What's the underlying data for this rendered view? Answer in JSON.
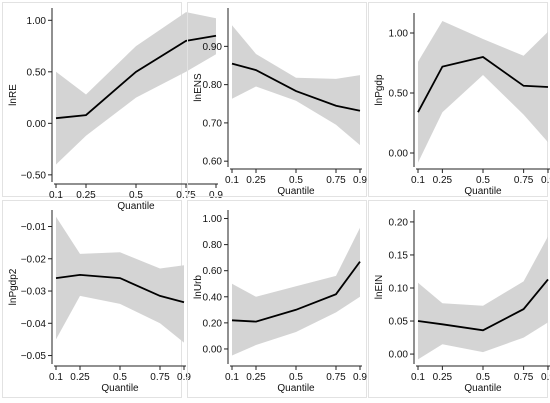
{
  "chart_data": [
    {
      "type": "line",
      "xlabel": "Quantile",
      "ylabel": "lnRE",
      "x": [
        0.1,
        0.25,
        0.5,
        0.75,
        0.9
      ],
      "xticks": [
        "0.1",
        "0.25",
        "0.5",
        "0.75",
        "0.9"
      ],
      "ylim": [
        -0.55,
        1.1
      ],
      "yticks": [
        -0.5,
        0.0,
        0.5,
        1.0
      ],
      "ytick_labels": [
        "−0.50",
        "0.00",
        "0.50",
        "1.00"
      ],
      "estimate": [
        0.05,
        0.08,
        0.5,
        0.8,
        0.85
      ],
      "ci_lower": [
        -0.4,
        -0.12,
        0.25,
        0.5,
        0.67
      ],
      "ci_upper": [
        0.5,
        0.28,
        0.75,
        1.08,
        1.02
      ]
    },
    {
      "type": "line",
      "xlabel": "Quantile",
      "ylabel": "lnENS",
      "x": [
        0.1,
        0.25,
        0.5,
        0.75,
        0.9
      ],
      "xticks": [
        "0.1",
        "0.25",
        "0.5",
        "0.75",
        "0.9"
      ],
      "ylim": [
        0.59,
        0.995
      ],
      "yticks": [
        0.6,
        0.7,
        0.8,
        0.9
      ],
      "ytick_labels": [
        "0.60",
        "0.70",
        "0.80",
        "0.90"
      ],
      "estimate": [
        0.855,
        0.838,
        0.783,
        0.745,
        0.732
      ],
      "ci_lower": [
        0.763,
        0.795,
        0.758,
        0.695,
        0.642
      ],
      "ci_upper": [
        0.955,
        0.88,
        0.818,
        0.815,
        0.825
      ]
    },
    {
      "type": "line",
      "xlabel": "Quantile",
      "ylabel": "lnPgdp",
      "x": [
        0.1,
        0.25,
        0.5,
        0.75,
        0.9
      ],
      "xticks": [
        "0.1",
        "0.25",
        "0.5",
        "0.75",
        "0.9"
      ],
      "ylim": [
        -0.1,
        1.15
      ],
      "yticks": [
        0.0,
        0.5,
        1.0
      ],
      "ytick_labels": [
        "0.00",
        "0.50",
        "1.00"
      ],
      "estimate": [
        0.34,
        0.72,
        0.8,
        0.56,
        0.55
      ],
      "ci_lower": [
        -0.08,
        0.34,
        0.65,
        0.32,
        0.09
      ],
      "ci_upper": [
        0.76,
        1.1,
        0.95,
        0.81,
        1.01
      ]
    },
    {
      "type": "line",
      "xlabel": "Quantile",
      "ylabel": "lnPgdp2",
      "x": [
        0.1,
        0.25,
        0.5,
        0.75,
        0.9
      ],
      "xticks": [
        "0.1",
        "0.25",
        "0.5",
        "0.75",
        "0.9"
      ],
      "ylim": [
        -0.052,
        -0.0055
      ],
      "yticks": [
        -0.05,
        -0.04,
        -0.03,
        -0.02,
        -0.01
      ],
      "ytick_labels": [
        "−0.05",
        "−0.04",
        "−0.03",
        "−0.02",
        "−0.01"
      ],
      "estimate": [
        -0.026,
        -0.025,
        -0.026,
        -0.0315,
        -0.0335
      ],
      "ci_lower": [
        -0.045,
        -0.0315,
        -0.034,
        -0.04,
        -0.046
      ],
      "ci_upper": [
        -0.007,
        -0.0185,
        -0.018,
        -0.023,
        -0.022
      ]
    },
    {
      "type": "line",
      "xlabel": "Quantile",
      "ylabel": "lnUrb",
      "x": [
        0.1,
        0.25,
        0.5,
        0.75,
        0.9
      ],
      "xticks": [
        "0.1",
        "0.25",
        "0.5",
        "0.75",
        "0.9"
      ],
      "ylim": [
        -0.1,
        1.05
      ],
      "yticks": [
        0.0,
        0.2,
        0.4,
        0.6,
        0.8,
        1.0
      ],
      "ytick_labels": [
        "0.00",
        "0.20",
        "0.40",
        "0.60",
        "0.80",
        "1.00"
      ],
      "estimate": [
        0.22,
        0.21,
        0.3,
        0.42,
        0.67
      ],
      "ci_lower": [
        -0.05,
        0.03,
        0.13,
        0.28,
        0.4
      ],
      "ci_upper": [
        0.5,
        0.4,
        0.48,
        0.56,
        0.93
      ]
    },
    {
      "type": "line",
      "xlabel": "Quantile",
      "ylabel": "lnEIN",
      "x": [
        0.1,
        0.25,
        0.5,
        0.75,
        0.9
      ],
      "xticks": [
        "0.1",
        "0.25",
        "0.5",
        "0.75",
        "0.9"
      ],
      "ylim": [
        -0.012,
        0.215
      ],
      "yticks": [
        0.0,
        0.05,
        0.1,
        0.15,
        0.2
      ],
      "ytick_labels": [
        "0.00",
        "0.05",
        "0.10",
        "0.15",
        "0.20"
      ],
      "estimate": [
        0.05,
        0.045,
        0.036,
        0.068,
        0.113
      ],
      "ci_lower": [
        -0.008,
        0.015,
        0.003,
        0.025,
        0.048
      ],
      "ci_upper": [
        0.108,
        0.077,
        0.073,
        0.11,
        0.178
      ]
    }
  ],
  "colors": {
    "band": "#d4d4d4",
    "line": "#000000",
    "axis": "#222222",
    "panel_border": "#e2e2e2"
  }
}
